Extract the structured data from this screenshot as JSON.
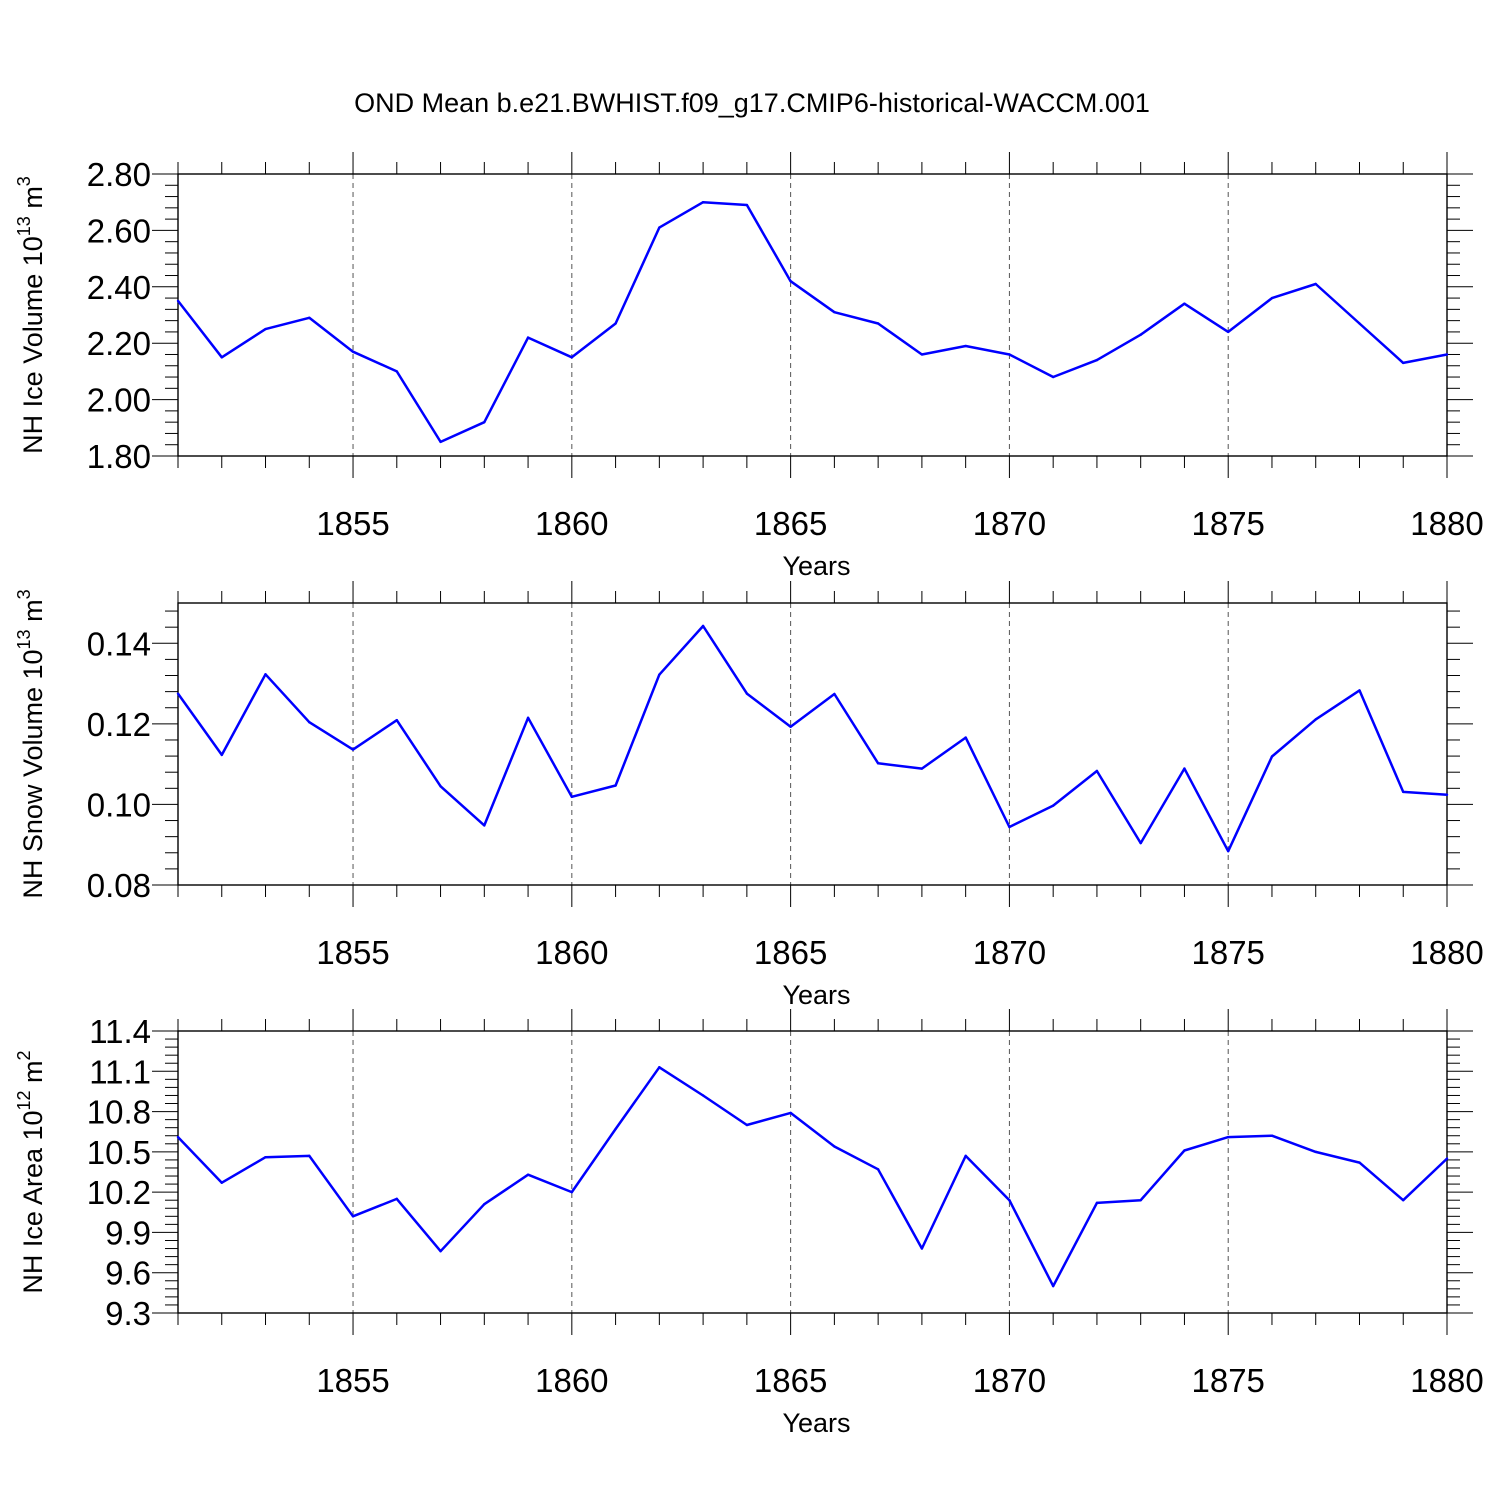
{
  "title": "OND Mean b.e21.BWHIST.f09_g17.CMIP6-historical-WACCM.001",
  "line_color": "#0000ff",
  "chart_data": [
    {
      "type": "line",
      "ylabel_main": "NH Ice Volume 10",
      "ylabel_exp": "13",
      "ylabel_unit": " m",
      "ylabel_unit_exp": "3",
      "xlabel": "Years",
      "xlim": [
        1851,
        1880
      ],
      "ylim": [
        1.8,
        2.8
      ],
      "yticks": [
        1.8,
        2.0,
        2.2,
        2.4,
        2.6,
        2.8
      ],
      "ytick_labels": [
        "1.80",
        "2.00",
        "2.20",
        "2.40",
        "2.60",
        "2.80"
      ],
      "xticks": [
        1855,
        1860,
        1865,
        1870,
        1875,
        1880
      ],
      "xtick_labels": [
        "1855",
        "1860",
        "1865",
        "1870",
        "1875",
        "1880"
      ],
      "x": [
        1851,
        1852,
        1853,
        1854,
        1855,
        1856,
        1857,
        1858,
        1859,
        1860,
        1861,
        1862,
        1863,
        1864,
        1865,
        1866,
        1867,
        1868,
        1869,
        1870,
        1871,
        1872,
        1873,
        1874,
        1875,
        1876,
        1877,
        1878,
        1879,
        1880
      ],
      "values": [
        2.35,
        2.15,
        2.25,
        2.29,
        2.17,
        2.1,
        1.85,
        1.92,
        2.22,
        2.15,
        2.27,
        2.61,
        2.7,
        2.69,
        2.42,
        2.31,
        2.27,
        2.16,
        2.19,
        2.16,
        2.08,
        2.14,
        2.23,
        2.34,
        2.24,
        2.36,
        2.41,
        2.27,
        2.13,
        2.16
      ]
    },
    {
      "type": "line",
      "ylabel_main": "NH Snow Volume 10",
      "ylabel_exp": "13",
      "ylabel_unit": " m",
      "ylabel_unit_exp": "3",
      "xlabel": "Years",
      "xlim": [
        1851,
        1880
      ],
      "ylim": [
        0.08,
        0.15
      ],
      "yticks": [
        0.08,
        0.1,
        0.12,
        0.14
      ],
      "ytick_labels": [
        "0.08",
        "0.10",
        "0.12",
        "0.14"
      ],
      "xticks": [
        1855,
        1860,
        1865,
        1870,
        1875,
        1880
      ],
      "xtick_labels": [
        "1855",
        "1860",
        "1865",
        "1870",
        "1875",
        "1880"
      ],
      "x": [
        1851,
        1852,
        1853,
        1854,
        1855,
        1856,
        1857,
        1858,
        1859,
        1860,
        1861,
        1862,
        1863,
        1864,
        1865,
        1866,
        1867,
        1868,
        1869,
        1870,
        1871,
        1872,
        1873,
        1874,
        1875,
        1876,
        1877,
        1878,
        1879,
        1880
      ],
      "values": [
        0.1275,
        0.1123,
        0.1323,
        0.1204,
        0.1136,
        0.1209,
        0.1045,
        0.0948,
        0.1215,
        0.1019,
        0.1047,
        0.1322,
        0.1443,
        0.1275,
        0.1193,
        0.1274,
        0.1102,
        0.1089,
        0.1166,
        0.0944,
        0.0997,
        0.1083,
        0.0904,
        0.1089,
        0.0884,
        0.1119,
        0.1211,
        0.1283,
        0.1031,
        0.1024
      ]
    },
    {
      "type": "line",
      "ylabel_main": "NH Ice Area 10",
      "ylabel_exp": "12",
      "ylabel_unit": " m",
      "ylabel_unit_exp": "2",
      "xlabel": "Years",
      "xlim": [
        1851,
        1880
      ],
      "ylim": [
        9.3,
        11.4
      ],
      "yticks": [
        9.3,
        9.6,
        9.9,
        10.2,
        10.5,
        10.8,
        11.1,
        11.4
      ],
      "ytick_labels": [
        "9.3",
        "9.6",
        "9.9",
        "10.2",
        "10.5",
        "10.8",
        "11.1",
        "11.4"
      ],
      "xticks": [
        1855,
        1860,
        1865,
        1870,
        1875,
        1880
      ],
      "xtick_labels": [
        "1855",
        "1860",
        "1865",
        "1870",
        "1875",
        "1880"
      ],
      "x": [
        1851,
        1852,
        1853,
        1854,
        1855,
        1856,
        1857,
        1858,
        1859,
        1860,
        1861,
        1862,
        1863,
        1864,
        1865,
        1866,
        1867,
        1868,
        1869,
        1870,
        1871,
        1872,
        1873,
        1874,
        1875,
        1876,
        1877,
        1878,
        1879,
        1880
      ],
      "values": [
        10.61,
        10.27,
        10.46,
        10.47,
        10.02,
        10.15,
        9.76,
        10.11,
        10.33,
        10.2,
        10.67,
        11.13,
        10.92,
        10.7,
        10.79,
        10.54,
        10.37,
        9.78,
        10.47,
        10.14,
        9.5,
        10.12,
        10.14,
        10.51,
        10.61,
        10.62,
        10.5,
        10.42,
        10.14,
        10.45
      ]
    }
  ]
}
